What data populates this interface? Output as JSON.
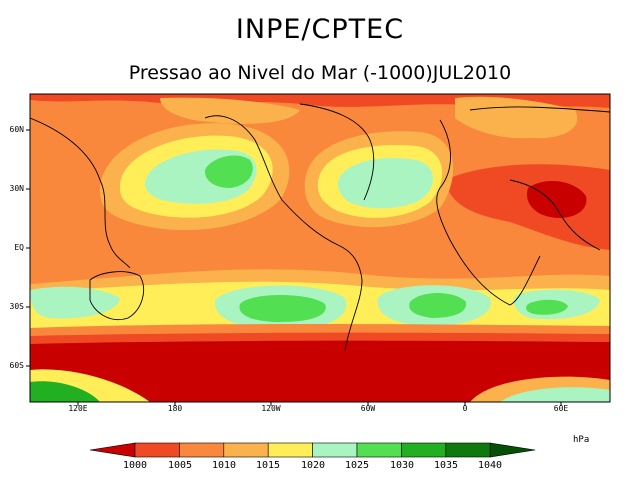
{
  "header": {
    "org": "INPE/CPTEC",
    "product": "Pressao ao Nivel do Mar (-1000)JUL2010"
  },
  "map": {
    "lat_labels": [
      "60N",
      "30N",
      "EQ",
      "30S",
      "60S"
    ],
    "lon_labels": [
      "120E",
      "180",
      "120W",
      "60W",
      "0",
      "60E"
    ]
  },
  "legend": {
    "unit": "hPa",
    "levels": [
      "1000",
      "1005",
      "1010",
      "1015",
      "1020",
      "1025",
      "1030",
      "1035",
      "1040"
    ],
    "colors": [
      "#c80000",
      "#ef4a24",
      "#f9883c",
      "#fbb24c",
      "#ffee58",
      "#aaf4c2",
      "#52e052",
      "#22b022",
      "#0e7a0e",
      "#064f06"
    ]
  }
}
